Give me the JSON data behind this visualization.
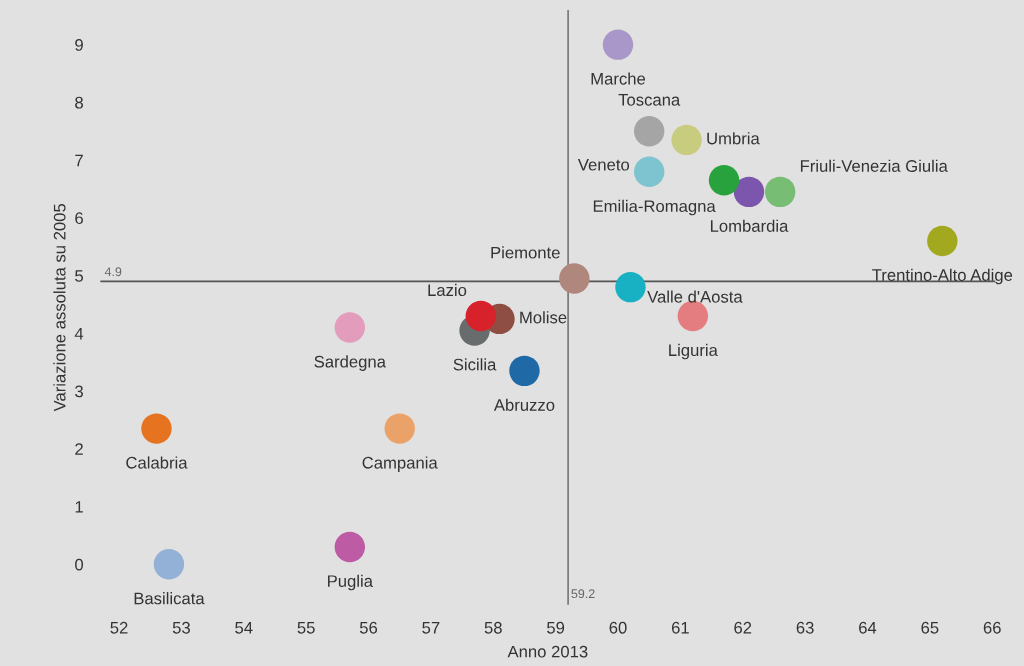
{
  "chart_data": {
    "type": "scatter",
    "xlabel": "Anno 2013",
    "ylabel": "Variazione assoluta su 2005",
    "x": [
      60.0,
      60.5,
      61.1,
      60.5,
      61.7,
      62.1,
      62.6,
      65.2,
      59.3,
      60.2,
      61.2,
      57.8,
      58.1,
      57.7,
      55.7,
      58.5,
      52.6,
      56.5,
      52.8,
      55.7
    ],
    "values": [
      9.0,
      7.5,
      7.35,
      6.8,
      6.65,
      6.45,
      6.45,
      5.6,
      4.95,
      4.8,
      4.3,
      4.3,
      4.25,
      4.05,
      4.1,
      3.35,
      2.35,
      2.35,
      0.0,
      0.3
    ],
    "colors": [
      "#a897c8",
      "#a5a5a5",
      "#c8cc7e",
      "#7dc3d0",
      "#27a23c",
      "#7c55ad",
      "#78bd74",
      "#a2a91f",
      "#b0877c",
      "#17b1c3",
      "#e37d80",
      "#d7222b",
      "#8f4e43",
      "#696c6c",
      "#e39cbc",
      "#1f6aa6",
      "#e5731f",
      "#eba269",
      "#93b0d6",
      "#bd5ba5"
    ],
    "marker": "circle",
    "annotations": [
      {
        "text": "Marche",
        "x": 60.0,
        "y": 9.0
      },
      {
        "text": "Toscana",
        "x": 60.5,
        "y": 7.5
      },
      {
        "text": "Umbria",
        "x": 61.1,
        "y": 7.35
      },
      {
        "text": "Veneto",
        "x": 60.5,
        "y": 6.8
      },
      {
        "text": "Emilia-Romagna",
        "x": 61.7,
        "y": 6.65
      },
      {
        "text": "Lombardia",
        "x": 62.1,
        "y": 6.45
      },
      {
        "text": "Friuli-Venezia Giulia",
        "x": 62.6,
        "y": 6.45
      },
      {
        "text": "Trentino-Alto Adige",
        "x": 65.2,
        "y": 5.6
      },
      {
        "text": "Piemonte",
        "x": 59.3,
        "y": 4.95
      },
      {
        "text": "Valle d'Aosta",
        "x": 60.2,
        "y": 4.8
      },
      {
        "text": "Liguria",
        "x": 61.2,
        "y": 4.3
      },
      {
        "text": "Lazio",
        "x": 57.8,
        "y": 4.3
      },
      {
        "text": "Molise",
        "x": 58.1,
        "y": 4.25
      },
      {
        "text": "Sicilia",
        "x": 57.7,
        "y": 4.05
      },
      {
        "text": "Sardegna",
        "x": 55.7,
        "y": 4.1
      },
      {
        "text": "Abruzzo",
        "x": 58.5,
        "y": 3.35
      },
      {
        "text": "Calabria",
        "x": 52.6,
        "y": 2.35
      },
      {
        "text": "Campania",
        "x": 56.5,
        "y": 2.35
      },
      {
        "text": "Basilicata",
        "x": 52.8,
        "y": 0.0
      },
      {
        "text": "Puglia",
        "x": 55.7,
        "y": 0.3
      }
    ],
    "ref_lines": [
      {
        "axis": "y",
        "value": 4.9,
        "label": "4.9",
        "color": "#555555"
      },
      {
        "axis": "x",
        "value": 59.2,
        "label": "59.2",
        "color": "#777777"
      }
    ],
    "xlim": [
      51.7,
      66.05
    ],
    "ylim": [
      -0.7,
      9.6
    ],
    "xticks": [
      52,
      53,
      54,
      55,
      56,
      57,
      58,
      59,
      60,
      61,
      62,
      63,
      64,
      65,
      66
    ],
    "yticks": [
      0,
      1,
      2,
      3,
      4,
      5,
      6,
      7,
      8,
      9
    ],
    "grid": false,
    "legend": false
  }
}
